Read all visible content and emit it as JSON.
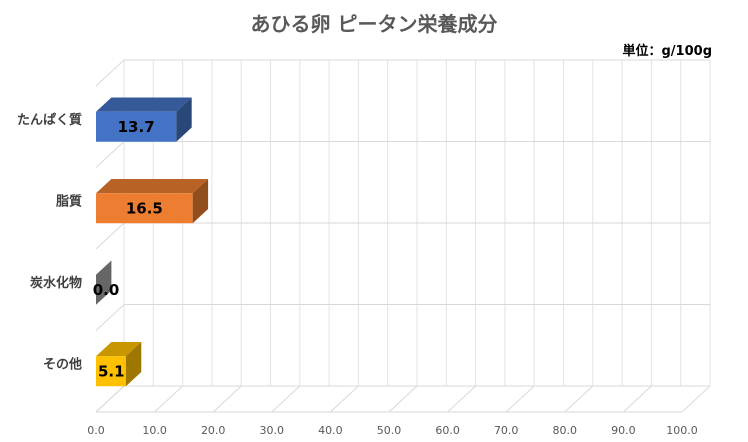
{
  "chart_data": {
    "type": "bar",
    "orientation": "horizontal",
    "title": "あひる卵 ピータン栄養成分",
    "unit": "単位：g/100g",
    "categories": [
      "たんぱく質",
      "脂質",
      "炭水化物",
      "その他"
    ],
    "values": [
      13.7,
      16.5,
      0.0,
      5.1
    ],
    "data_labels": [
      "13.7",
      "16.5",
      "0.0",
      "5.1"
    ],
    "colors": [
      "#4472C4",
      "#ED7D31",
      "#A5A5A5",
      "#FFC000"
    ],
    "xlim": [
      0,
      100
    ],
    "x_ticks": [
      0,
      10,
      20,
      30,
      40,
      50,
      60,
      70,
      80,
      90,
      100
    ],
    "x_tick_labels": [
      "0.0",
      "10.0",
      "20.0",
      "30.0",
      "40.0",
      "50.0",
      "60.0",
      "70.0",
      "80.0",
      "90.0",
      "100.0"
    ],
    "grid": true,
    "style": "3d"
  }
}
